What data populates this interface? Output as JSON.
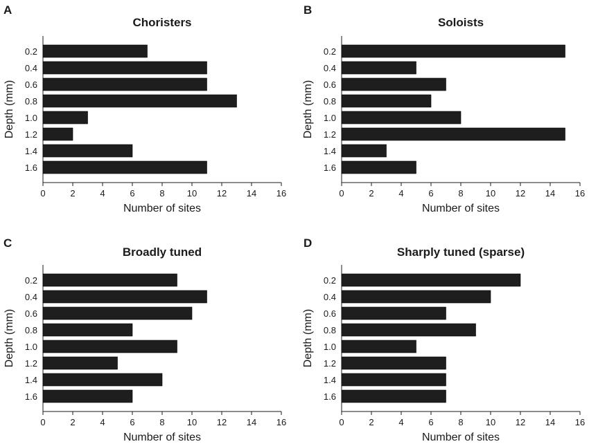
{
  "chart_data": [
    {
      "panel": "A",
      "type": "bar",
      "orientation": "horizontal",
      "title": "Choristers",
      "xlabel": "Number of sites",
      "ylabel": "Depth (mm)",
      "categories": [
        "0.2",
        "0.4",
        "0.6",
        "0.8",
        "1.0",
        "1.2",
        "1.4",
        "1.6"
      ],
      "values": [
        7,
        11,
        11,
        13,
        3,
        2,
        6,
        11
      ],
      "xlim": [
        0,
        16
      ],
      "xticks": [
        "0",
        "2",
        "4",
        "6",
        "8",
        "10",
        "12",
        "14",
        "16"
      ]
    },
    {
      "panel": "B",
      "type": "bar",
      "orientation": "horizontal",
      "title": "Soloists",
      "xlabel": "Number of sites",
      "ylabel": "Depth (mm)",
      "categories": [
        "0.2",
        "0.4",
        "0.6",
        "0.8",
        "1.0",
        "1.2",
        "1.4",
        "1.6"
      ],
      "values": [
        15,
        5,
        7,
        6,
        8,
        15,
        3,
        5
      ],
      "xlim": [
        0,
        16
      ],
      "xticks": [
        "0",
        "2",
        "4",
        "6",
        "8",
        "10",
        "12",
        "14",
        "16"
      ]
    },
    {
      "panel": "C",
      "type": "bar",
      "orientation": "horizontal",
      "title": "Broadly tuned",
      "xlabel": "Number of sites",
      "ylabel": "Depth (mm)",
      "categories": [
        "0.2",
        "0.4",
        "0.6",
        "0.8",
        "1.0",
        "1.2",
        "1.4",
        "1.6"
      ],
      "values": [
        9,
        11,
        10,
        6,
        9,
        5,
        8,
        6
      ],
      "xlim": [
        0,
        16
      ],
      "xticks": [
        "0",
        "2",
        "4",
        "6",
        "8",
        "10",
        "12",
        "14",
        "16"
      ]
    },
    {
      "panel": "D",
      "type": "bar",
      "orientation": "horizontal",
      "title": "Sharply tuned (sparse)",
      "xlabel": "Number of sites",
      "ylabel": "Depth (mm)",
      "categories": [
        "0.2",
        "0.4",
        "0.6",
        "0.8",
        "1.0",
        "1.2",
        "1.4",
        "1.6"
      ],
      "values": [
        12,
        10,
        7,
        9,
        5,
        7,
        7,
        7
      ],
      "xlim": [
        0,
        16
      ],
      "xticks": [
        "0",
        "2",
        "4",
        "6",
        "8",
        "10",
        "12",
        "14",
        "16"
      ]
    }
  ],
  "colors": {
    "bar_fill": "#1e1e1e",
    "axis": "#1a1a1a",
    "background": "#ffffff"
  }
}
